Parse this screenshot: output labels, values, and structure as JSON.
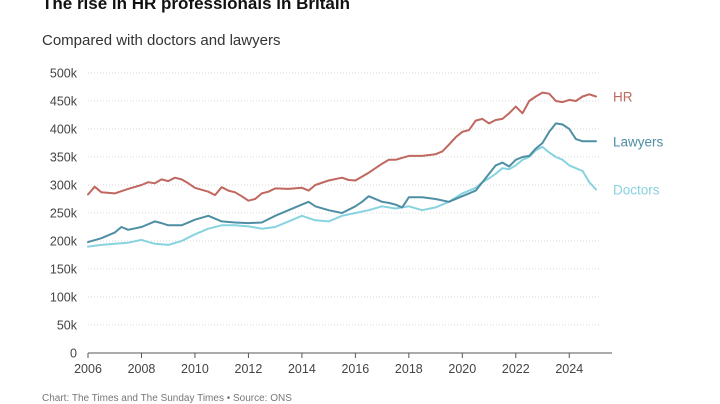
{
  "header": {
    "title": "The rise in HR professionals in Britain",
    "subtitle": "Compared with doctors and lawyers"
  },
  "footer": {
    "source": "Chart: The Times and The Sunday Times • Source: ONS"
  },
  "chart_data": {
    "type": "line",
    "title": "The rise in HR professionals in Britain",
    "subtitle": "Compared with doctors and lawyers",
    "xlim": [
      2006,
      2025
    ],
    "ylim": [
      0,
      500000
    ],
    "x_ticks": [
      2006,
      2008,
      2010,
      2012,
      2014,
      2016,
      2018,
      2020,
      2022,
      2024
    ],
    "x_tick_labels": [
      "2006",
      "2008",
      "2010",
      "2012",
      "2014",
      "2016",
      "2018",
      "2020",
      "2022",
      "2024"
    ],
    "y_ticks": [
      0,
      50000,
      100000,
      150000,
      200000,
      250000,
      300000,
      350000,
      400000,
      450000,
      500000
    ],
    "y_tick_labels": [
      "0",
      "50k",
      "100k",
      "150k",
      "200k",
      "250k",
      "300k",
      "350k",
      "400k",
      "450k",
      "500k"
    ],
    "grid": "horizontal",
    "legend": "direct labels at right end of lines",
    "series": [
      {
        "name": "HR",
        "color": "#c0675f",
        "x": [
          2006.0,
          2006.25,
          2006.5,
          2007.0,
          2007.5,
          2008.0,
          2008.25,
          2008.5,
          2008.75,
          2009.0,
          2009.25,
          2009.5,
          2009.75,
          2010.0,
          2010.5,
          2010.75,
          2011.0,
          2011.25,
          2011.5,
          2011.75,
          2012.0,
          2012.25,
          2012.5,
          2012.75,
          2013.0,
          2013.5,
          2014.0,
          2014.25,
          2014.5,
          2015.0,
          2015.5,
          2015.75,
          2016.0,
          2016.5,
          2017.0,
          2017.25,
          2017.5,
          2018.0,
          2018.5,
          2019.0,
          2019.25,
          2019.5,
          2019.75,
          2020.0,
          2020.25,
          2020.5,
          2020.75,
          2021.0,
          2021.25,
          2021.5,
          2021.75,
          2022.0,
          2022.25,
          2022.5,
          2022.75,
          2023.0,
          2023.25,
          2023.5,
          2023.75,
          2024.0,
          2024.25,
          2024.5,
          2024.75,
          2025.0
        ],
        "values": [
          283000,
          297000,
          287000,
          285000,
          293000,
          300000,
          305000,
          303000,
          310000,
          307000,
          313000,
          310000,
          303000,
          295000,
          288000,
          282000,
          296000,
          290000,
          287000,
          280000,
          272000,
          275000,
          285000,
          288000,
          294000,
          293000,
          295000,
          290000,
          300000,
          308000,
          313000,
          309000,
          308000,
          322000,
          338000,
          345000,
          345000,
          352000,
          352000,
          355000,
          360000,
          372000,
          385000,
          395000,
          398000,
          415000,
          418000,
          410000,
          416000,
          418000,
          428000,
          440000,
          428000,
          450000,
          458000,
          465000,
          463000,
          450000,
          448000,
          452000,
          450000,
          458000,
          462000,
          458000
        ]
      },
      {
        "name": "Lawyers",
        "color": "#4e8fa3",
        "x": [
          2006.0,
          2006.5,
          2007.0,
          2007.25,
          2007.5,
          2008.0,
          2008.5,
          2008.75,
          2009.0,
          2009.5,
          2010.0,
          2010.5,
          2011.0,
          2011.5,
          2012.0,
          2012.5,
          2013.0,
          2013.5,
          2014.0,
          2014.25,
          2014.5,
          2015.0,
          2015.5,
          2016.0,
          2016.25,
          2016.5,
          2017.0,
          2017.25,
          2017.5,
          2017.75,
          2018.0,
          2018.5,
          2019.0,
          2019.5,
          2020.0,
          2020.25,
          2020.5,
          2020.75,
          2021.0,
          2021.25,
          2021.5,
          2021.75,
          2022.0,
          2022.25,
          2022.5,
          2022.75,
          2023.0,
          2023.25,
          2023.5,
          2023.75,
          2024.0,
          2024.25,
          2024.5,
          2024.75,
          2025.0
        ],
        "values": [
          198000,
          205000,
          215000,
          225000,
          220000,
          225000,
          235000,
          232000,
          228000,
          228000,
          238000,
          245000,
          235000,
          233000,
          232000,
          233000,
          245000,
          255000,
          265000,
          270000,
          262000,
          255000,
          250000,
          262000,
          270000,
          280000,
          270000,
          268000,
          265000,
          260000,
          278000,
          278000,
          275000,
          270000,
          280000,
          285000,
          290000,
          305000,
          320000,
          335000,
          340000,
          333000,
          345000,
          350000,
          352000,
          365000,
          375000,
          395000,
          410000,
          408000,
          400000,
          382000,
          378000,
          378000,
          378000
        ]
      },
      {
        "name": "Doctors",
        "color": "#87d3df",
        "x": [
          2006.0,
          2006.5,
          2007.0,
          2007.5,
          2008.0,
          2008.5,
          2009.0,
          2009.5,
          2010.0,
          2010.5,
          2011.0,
          2011.5,
          2012.0,
          2012.5,
          2013.0,
          2013.5,
          2014.0,
          2014.5,
          2015.0,
          2015.5,
          2016.0,
          2016.5,
          2017.0,
          2017.5,
          2018.0,
          2018.5,
          2019.0,
          2019.5,
          2020.0,
          2020.5,
          2020.75,
          2021.0,
          2021.25,
          2021.5,
          2021.75,
          2022.0,
          2022.25,
          2022.5,
          2022.75,
          2023.0,
          2023.25,
          2023.5,
          2023.75,
          2024.0,
          2024.25,
          2024.5,
          2024.75,
          2025.0
        ],
        "values": [
          190000,
          193000,
          195000,
          197000,
          202000,
          195000,
          193000,
          200000,
          212000,
          222000,
          228000,
          228000,
          226000,
          222000,
          225000,
          235000,
          245000,
          237000,
          235000,
          245000,
          250000,
          255000,
          262000,
          258000,
          262000,
          255000,
          260000,
          270000,
          285000,
          295000,
          305000,
          312000,
          320000,
          330000,
          328000,
          335000,
          345000,
          350000,
          362000,
          368000,
          358000,
          350000,
          345000,
          335000,
          330000,
          325000,
          305000,
          292000
        ]
      }
    ]
  }
}
